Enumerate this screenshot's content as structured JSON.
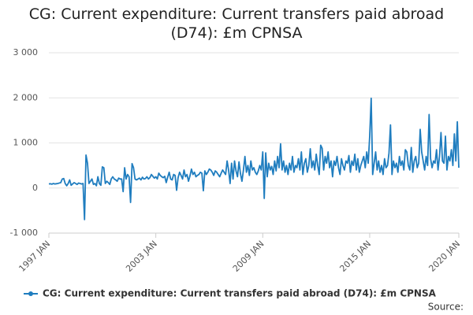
{
  "chart_data": {
    "type": "line",
    "title": "CG: Current expenditure: Current transfers paid abroad (D74): £m CPNSA",
    "source": "Source:",
    "categories": [
      "1997 JAN",
      null,
      null,
      null,
      null,
      null,
      null,
      null,
      null,
      null,
      null,
      null,
      null,
      null,
      null,
      null,
      null,
      null,
      null,
      null,
      null,
      null,
      null,
      null,
      null,
      null,
      null,
      null,
      null,
      null,
      null,
      null,
      null,
      null,
      null,
      null,
      null,
      null,
      null,
      null,
      null,
      null,
      null,
      null,
      null,
      null,
      null,
      null,
      null,
      null,
      null,
      null,
      null,
      null,
      null,
      null,
      null,
      null,
      null,
      null,
      null,
      null,
      null,
      null,
      null,
      null,
      null,
      null,
      null,
      null,
      null,
      null,
      "2003 JAN",
      null,
      null,
      null,
      null,
      null,
      null,
      null,
      null,
      null,
      null,
      null,
      null,
      null,
      null,
      null,
      null,
      null,
      null,
      null,
      null,
      null,
      null,
      null,
      null,
      null,
      null,
      null,
      null,
      null,
      null,
      null,
      null,
      null,
      null,
      null,
      null,
      null,
      null,
      null,
      null,
      null,
      null,
      null,
      null,
      null,
      null,
      null,
      null,
      null,
      null,
      null,
      null,
      null,
      null,
      null,
      null,
      null,
      null,
      null,
      null,
      null,
      null,
      null,
      null,
      null,
      null,
      null,
      null,
      null,
      null,
      null,
      "2009 JAN",
      null,
      null,
      null,
      null,
      null,
      null,
      null,
      null,
      null,
      null,
      null,
      null,
      null,
      null,
      null,
      null,
      null,
      null,
      null,
      null,
      null,
      null,
      null,
      null,
      null,
      null,
      null,
      null,
      null,
      null,
      null,
      null,
      null,
      null,
      null,
      null,
      null,
      null,
      null,
      null,
      null,
      null,
      null,
      null,
      null,
      null,
      null,
      null,
      null,
      null,
      null,
      null,
      null,
      null,
      null,
      null,
      null,
      null,
      null,
      null,
      null,
      null,
      null,
      null,
      null,
      null,
      null,
      null,
      null,
      null,
      null,
      "2015 JAN",
      null,
      null,
      null,
      null,
      null,
      null,
      null,
      null,
      null,
      null,
      null,
      null,
      null,
      null,
      null,
      null,
      null,
      null,
      null,
      null,
      null,
      null,
      null,
      null,
      null,
      null,
      null,
      null,
      null,
      null,
      null,
      null,
      null,
      null,
      null,
      null,
      null,
      null,
      null,
      null,
      null,
      null,
      null,
      null,
      null,
      null,
      null,
      null,
      null,
      null,
      null,
      null,
      null,
      null,
      null,
      null,
      null,
      null,
      null,
      "2020 JAN"
    ],
    "series": [
      {
        "name": "CG: Current expenditure: Current transfers paid abroad (D74): £m CPNSA",
        "color": "#1f7dbf",
        "values": [
          90,
          95,
          85,
          100,
          90,
          95,
          100,
          110,
          120,
          200,
          210,
          100,
          50,
          100,
          180,
          60,
          90,
          120,
          100,
          80,
          110,
          100,
          90,
          100,
          -700,
          730,
          550,
          100,
          150,
          200,
          80,
          100,
          50,
          250,
          100,
          60,
          470,
          450,
          100,
          150,
          120,
          80,
          200,
          250,
          200,
          180,
          150,
          220,
          200,
          200,
          -80,
          450,
          200,
          300,
          250,
          -320,
          540,
          450,
          200,
          180,
          200,
          220,
          180,
          240,
          200,
          210,
          250,
          200,
          230,
          300,
          260,
          220,
          250,
          200,
          330,
          280,
          250,
          230,
          260,
          120,
          240,
          350,
          200,
          180,
          300,
          280,
          -50,
          230,
          350,
          280,
          200,
          400,
          250,
          300,
          150,
          270,
          420,
          300,
          350,
          250,
          280,
          300,
          350,
          330,
          -60,
          380,
          300,
          350,
          420,
          400,
          350,
          280,
          380,
          350,
          300,
          250,
          330,
          400,
          350,
          300,
          600,
          400,
          100,
          550,
          200,
          600,
          380,
          250,
          580,
          320,
          150,
          400,
          700,
          350,
          500,
          280,
          600,
          400,
          450,
          350,
          300,
          380,
          500,
          400,
          800,
          -230,
          780,
          250,
          550,
          400,
          480,
          300,
          600,
          380,
          700,
          450,
          980,
          400,
          600,
          350,
          500,
          300,
          550,
          400,
          700,
          350,
          500,
          450,
          650,
          400,
          800,
          300,
          550,
          650,
          350,
          500,
          870,
          450,
          600,
          400,
          750,
          500,
          300,
          950,
          880,
          400,
          700,
          550,
          800,
          450,
          600,
          250,
          600,
          500,
          700,
          450,
          300,
          650,
          500,
          400,
          600,
          550,
          720,
          350,
          600,
          500,
          750,
          400,
          650,
          350,
          500,
          600,
          700,
          450,
          800,
          550,
          1150,
          1990,
          300,
          550,
          800,
          400,
          600,
          350,
          500,
          300,
          650,
          450,
          500,
          780,
          1400,
          300,
          600,
          450,
          550,
          350,
          700,
          500,
          600,
          400,
          850,
          800,
          500,
          400,
          900,
          350,
          600,
          700,
          450,
          550,
          1300,
          800,
          600,
          400,
          700,
          500,
          1630,
          650,
          450,
          600,
          550,
          850,
          400,
          700,
          1230,
          600,
          550,
          1150,
          400,
          700,
          600,
          850,
          500,
          1200,
          600,
          1470,
          450
        ]
      }
    ],
    "ylim": [
      -1000,
      3000
    ],
    "yticks": [
      {
        "value": -1000,
        "label": "-1 000"
      },
      0,
      {
        "value": 1000,
        "label": "1 000"
      },
      {
        "value": 2000,
        "label": "2 000"
      },
      {
        "value": 3000,
        "label": "3 000"
      }
    ],
    "grid": true
  }
}
